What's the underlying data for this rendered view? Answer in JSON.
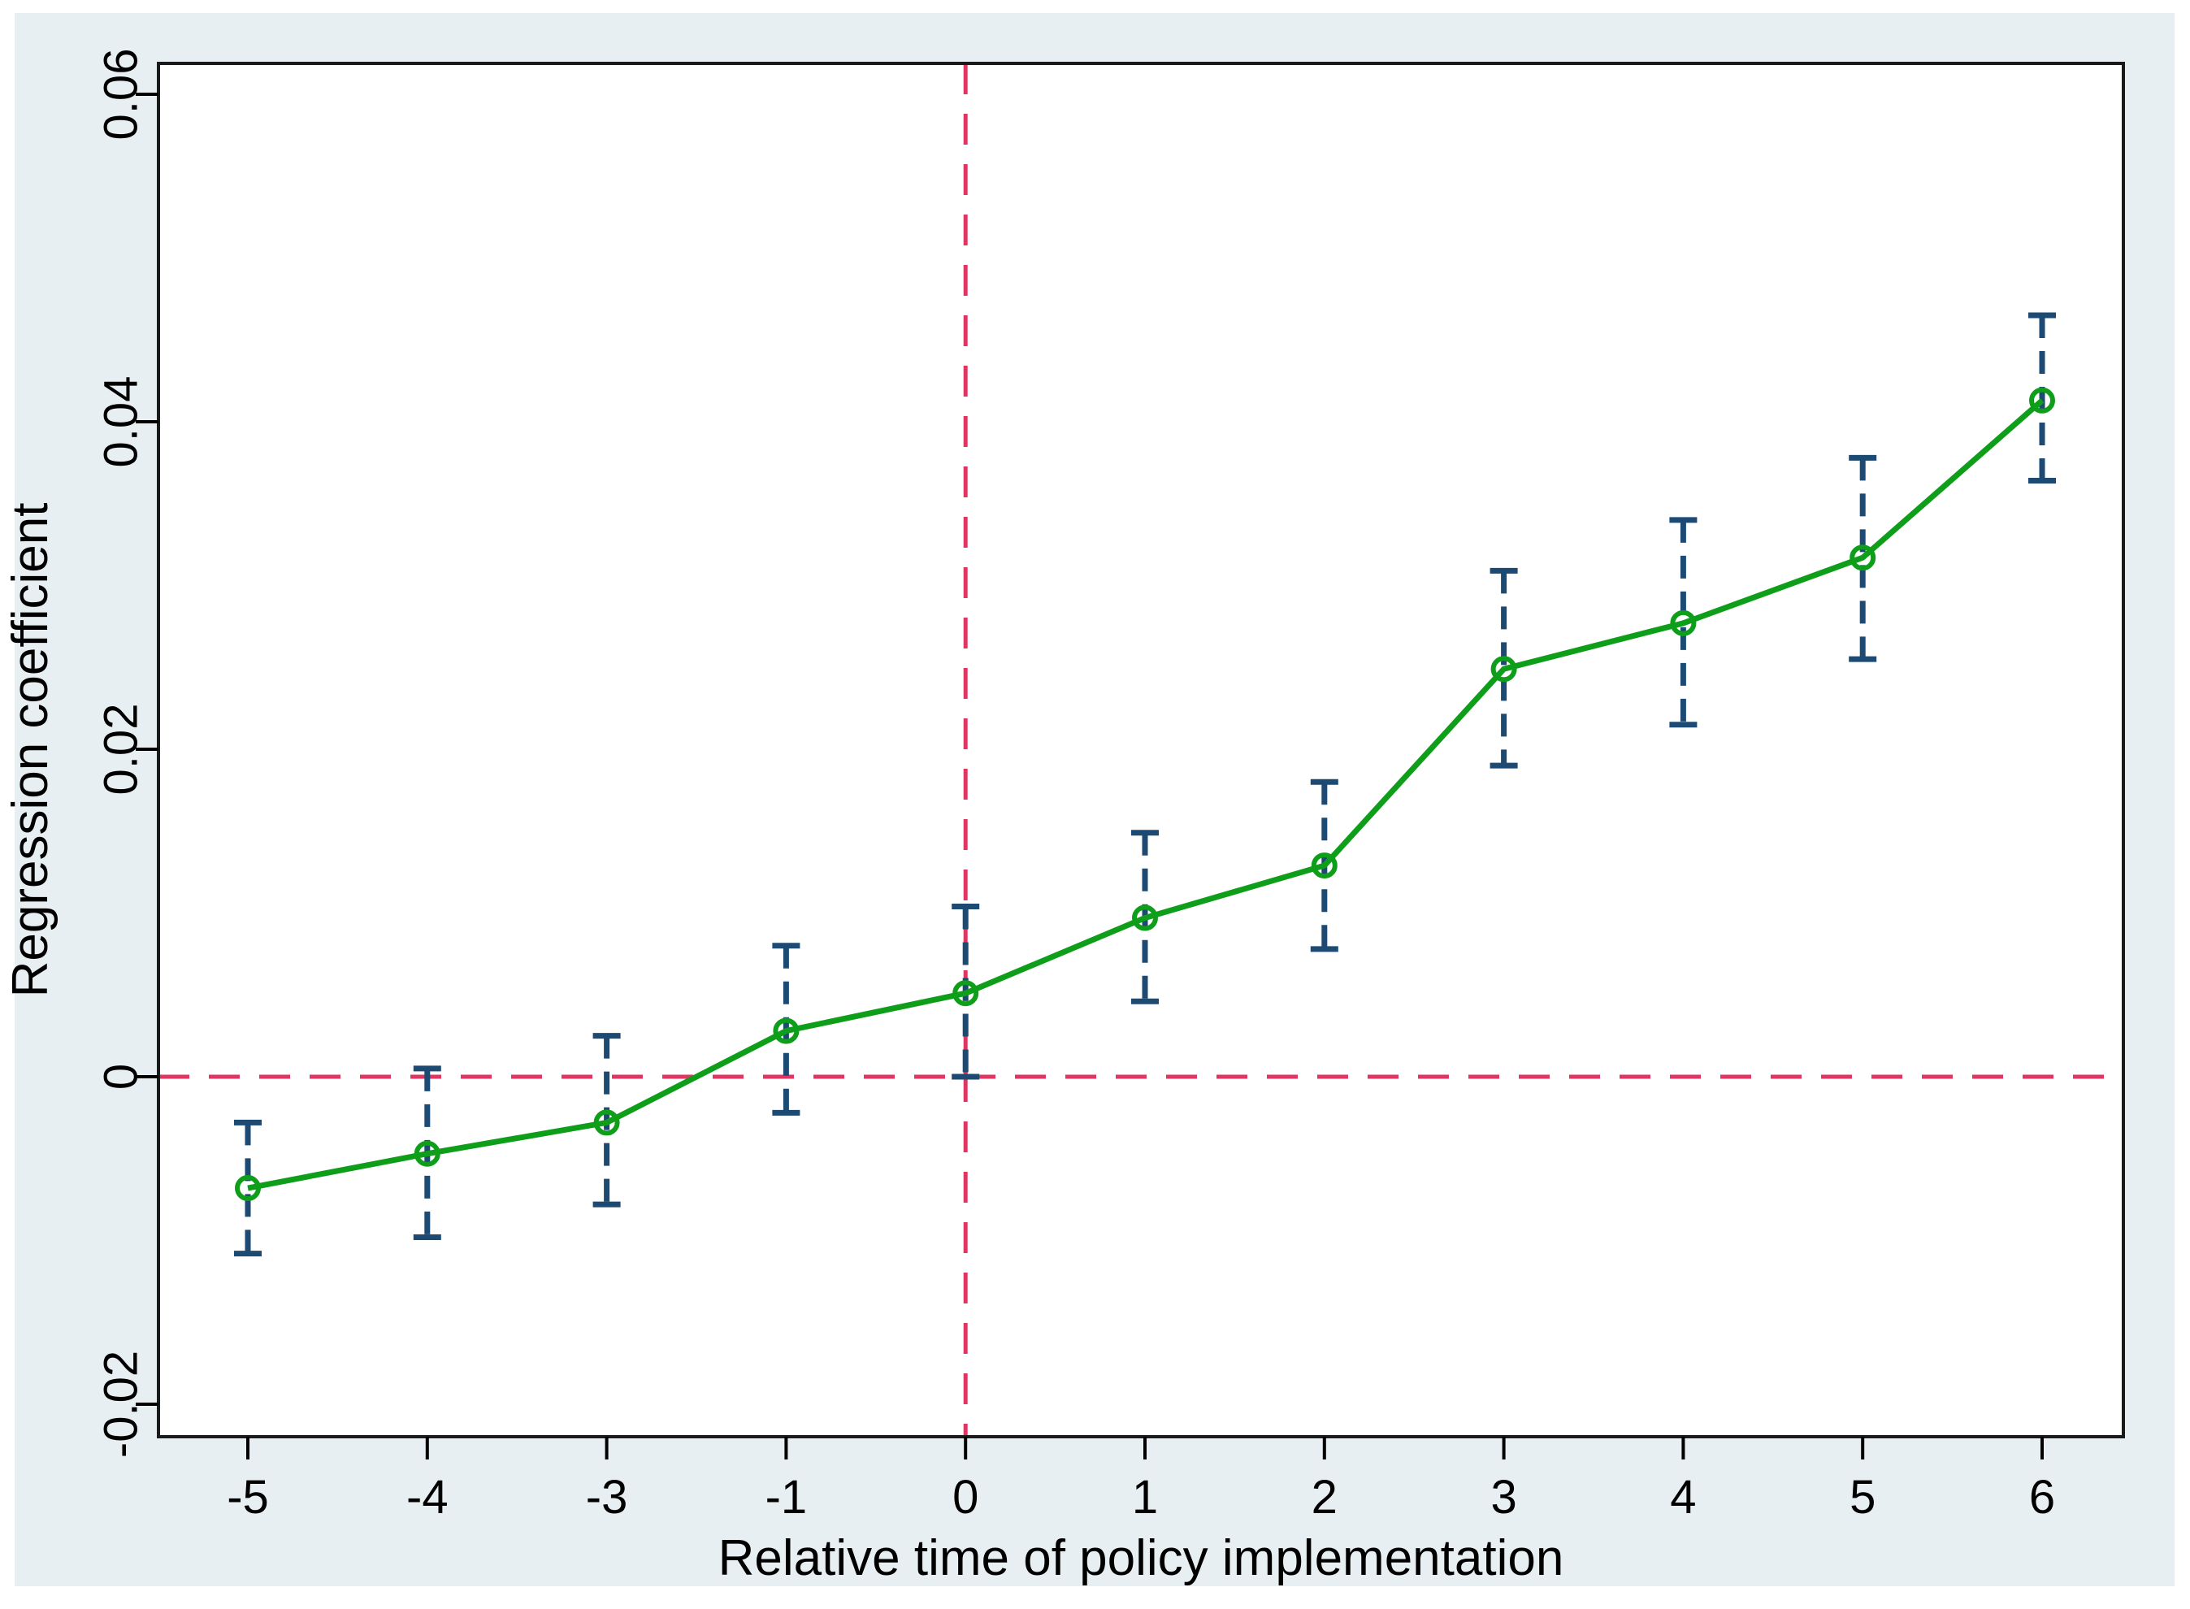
{
  "figure": {
    "background_color": "#e8eff2",
    "plot_background_color": "#ffffff",
    "border_color": "#1a1a1a"
  },
  "chart_data": {
    "type": "line",
    "title": "",
    "xlabel": "Relative time of policy implementation",
    "ylabel": "Regression coefficient",
    "categories": [
      "-5",
      "-4",
      "-3",
      "-1",
      "0",
      "1",
      "2",
      "3",
      "4",
      "5",
      "6"
    ],
    "series": [
      {
        "name": "coefficient",
        "values": [
          -0.0068,
          -0.0047,
          -0.0028,
          0.0028,
          0.0051,
          0.0097,
          0.0129,
          0.0249,
          0.0277,
          0.0317,
          0.0413
        ]
      },
      {
        "name": "ci_lower",
        "values": [
          -0.0108,
          -0.0098,
          -0.0078,
          -0.0022,
          0.0,
          0.0046,
          0.0078,
          0.019,
          0.0215,
          0.0255,
          0.0364
        ]
      },
      {
        "name": "ci_upper",
        "values": [
          -0.0028,
          0.0005,
          0.0025,
          0.008,
          0.0104,
          0.0149,
          0.018,
          0.0309,
          0.034,
          0.0378,
          0.0465
        ]
      }
    ],
    "y_ticks": [
      -0.02,
      0,
      0.02,
      0.04,
      0.06
    ],
    "y_tick_labels": [
      "-0.02",
      "0",
      "0.02",
      "0.04",
      "0.06"
    ],
    "ylim": [
      -0.0219,
      0.0619
    ],
    "grid": false,
    "legend": "none",
    "reference_lines": {
      "horizontal_at_y": 0,
      "vertical_at_x_category": "0"
    },
    "colors": {
      "line": "#0f9e1a",
      "marker": "#0f9e1a",
      "error_bar": "#1c4a73",
      "reference_line": "#e03562"
    }
  }
}
